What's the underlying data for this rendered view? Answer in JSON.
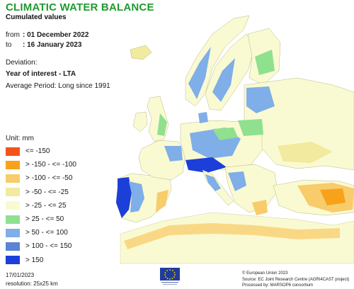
{
  "header": {
    "title": "CLIMATIC WATER BALANCE",
    "subtitle": "Cumulated values"
  },
  "period": {
    "from_label": "from",
    "from_value": ": 01 December 2022",
    "to_label": "to",
    "to_value": ": 16 January 2023"
  },
  "deviation": {
    "label": "Deviation:",
    "type": "Year of interest - LTA",
    "average_period": "Average Period: Long since 1991"
  },
  "legend": {
    "unit": "Unit: mm",
    "items": [
      {
        "label": "<= -150",
        "color": "#f2541b"
      },
      {
        "label": "> -150 - <= -100",
        "color": "#f7a21a"
      },
      {
        "label": "> -100 - <= -50",
        "color": "#f8cc6b"
      },
      {
        "label": "> -50 - <= -25",
        "color": "#f1ea9f"
      },
      {
        "label": "> -25 - <= 25",
        "color": "#fafad2"
      },
      {
        "label": "> 25 - <= 50",
        "color": "#8fe08f"
      },
      {
        "label": "> 50 - <= 100",
        "color": "#7faee8"
      },
      {
        "label": "> 100 - <= 150",
        "color": "#5b83d6"
      },
      {
        "label": "> 150",
        "color": "#1b3fd8"
      }
    ]
  },
  "footer": {
    "date": "17/01/2023",
    "resolution": "resolution: 25x25 km",
    "credits": [
      "© European Union 2023",
      "Source: EC Joint Research Centre (AGRI4CAST project)",
      "Processed by: MARSOP6 consortium"
    ]
  }
}
